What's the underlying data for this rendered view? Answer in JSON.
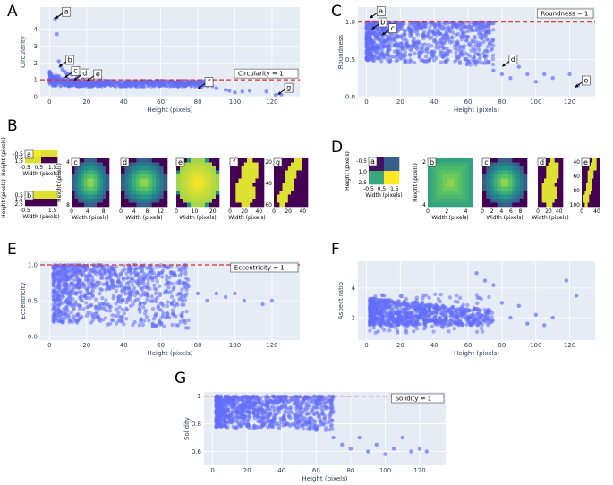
{
  "panel_labels": [
    "A",
    "B",
    "C",
    "D",
    "E",
    "F",
    "G"
  ],
  "chart_data": [
    {
      "id": "A",
      "type": "scatter",
      "xlabel": "Height (pixels)",
      "ylabel": "Circularity",
      "xlim": [
        -5,
        135
      ],
      "ylim": [
        0,
        5.3
      ],
      "xticks": [
        0,
        20,
        40,
        60,
        80,
        100,
        120
      ],
      "yticks": [
        0,
        1,
        2,
        3,
        4
      ],
      "ref_value": 1,
      "legend": "Circularity = 1",
      "cloud": {
        "kind": "decay",
        "x_range": [
          0,
          88
        ],
        "y_base": 0.7,
        "y_spread": 0.35,
        "density": 700
      },
      "extra_points": [
        [
          3,
          4.6
        ],
        [
          4,
          3.7
        ],
        [
          5,
          2.1
        ],
        [
          6,
          1.8
        ],
        [
          7,
          1.6
        ],
        [
          8,
          1.5
        ],
        [
          9,
          1.4
        ],
        [
          10,
          1.35
        ],
        [
          12,
          1.3
        ],
        [
          5,
          1.2
        ],
        [
          15,
          1.15
        ],
        [
          18,
          1.1
        ],
        [
          90,
          0.5
        ],
        [
          95,
          0.4
        ],
        [
          97,
          0.35
        ],
        [
          100,
          0.25
        ],
        [
          104,
          0.3
        ],
        [
          108,
          0.35
        ],
        [
          117,
          0.3
        ],
        [
          122,
          0.1
        ],
        [
          125,
          0.12
        ]
      ],
      "annotations": [
        {
          "label": "a",
          "x": 3,
          "y": 4.6
        },
        {
          "label": "b",
          "x": 5,
          "y": 1.75
        },
        {
          "label": "c",
          "x": 8,
          "y": 1.1
        },
        {
          "label": "d",
          "x": 13,
          "y": 0.95
        },
        {
          "label": "e",
          "x": 20,
          "y": 0.9
        },
        {
          "label": "f",
          "x": 80,
          "y": 0.45
        },
        {
          "label": "g",
          "x": 123,
          "y": 0.1
        }
      ]
    },
    {
      "id": "C",
      "type": "scatter",
      "xlabel": "Height (pixels)",
      "ylabel": "Roundness",
      "xlim": [
        -5,
        135
      ],
      "ylim": [
        0,
        1.2
      ],
      "xticks": [
        0,
        20,
        40,
        60,
        80,
        100,
        120
      ],
      "yticks": [
        0.0,
        0.5,
        1.0
      ],
      "ref_value": 1,
      "legend": "Roundness = 1",
      "cloud": {
        "kind": "band",
        "x_range": [
          0,
          75
        ],
        "y_low": 0.35,
        "y_high": 1.0,
        "density": 900
      },
      "extra_points": [
        [
          70,
          0.45
        ],
        [
          75,
          0.35
        ],
        [
          80,
          0.3
        ],
        [
          85,
          0.25
        ],
        [
          90,
          0.4
        ],
        [
          95,
          0.3
        ],
        [
          100,
          0.2
        ],
        [
          105,
          0.3
        ],
        [
          110,
          0.25
        ],
        [
          120,
          0.3
        ],
        [
          125,
          0.15
        ]
      ],
      "annotations": [
        {
          "label": "a",
          "x": 2,
          "y": 1.05
        },
        {
          "label": "b",
          "x": 3,
          "y": 0.9
        },
        {
          "label": "c",
          "x": 9,
          "y": 0.82
        },
        {
          "label": "d",
          "x": 80,
          "y": 0.4
        },
        {
          "label": "e",
          "x": 123,
          "y": 0.12
        }
      ]
    },
    {
      "id": "E",
      "type": "scatter",
      "xlabel": "Height (pixels)",
      "ylabel": "Eccentricity",
      "xlim": [
        -5,
        135
      ],
      "ylim": [
        -0.05,
        1.05
      ],
      "xticks": [
        0,
        20,
        40,
        60,
        80,
        100,
        120
      ],
      "yticks": [
        0.0,
        0.5,
        1.0
      ],
      "ref_value": 1,
      "legend": "Eccentricity = 1",
      "cloud": {
        "kind": "band",
        "x_range": [
          2,
          75
        ],
        "y_low": 0.0,
        "y_high": 1.0,
        "density": 900
      },
      "extra_points": [
        [
          70,
          0.6
        ],
        [
          75,
          0.7
        ],
        [
          80,
          0.6
        ],
        [
          85,
          0.5
        ],
        [
          90,
          0.6
        ],
        [
          95,
          0.55
        ],
        [
          100,
          0.6
        ],
        [
          105,
          0.5
        ],
        [
          115,
          0.45
        ],
        [
          120,
          0.5
        ]
      ],
      "annotations": []
    },
    {
      "id": "F",
      "type": "scatter",
      "xlabel": "Height (pixels)",
      "ylabel": "Aspect ratio",
      "xlim": [
        -5,
        135
      ],
      "ylim": [
        0.5,
        5.8
      ],
      "xticks": [
        0,
        20,
        40,
        60,
        80,
        100,
        120
      ],
      "yticks": [
        2,
        4
      ],
      "ref_value": null,
      "legend": "",
      "cloud": {
        "kind": "band",
        "x_range": [
          2,
          75
        ],
        "y_low": 1.0,
        "y_high": 3.6,
        "density": 900
      },
      "extra_points": [
        [
          65,
          5.0
        ],
        [
          70,
          4.5
        ],
        [
          75,
          4.2
        ],
        [
          80,
          3.0
        ],
        [
          85,
          2.0
        ],
        [
          90,
          2.8
        ],
        [
          95,
          1.6
        ],
        [
          100,
          2.2
        ],
        [
          105,
          1.5
        ],
        [
          110,
          2.0
        ],
        [
          118,
          4.5
        ],
        [
          124,
          3.5
        ]
      ],
      "annotations": []
    },
    {
      "id": "G",
      "type": "scatter",
      "xlabel": "Height (pixels)",
      "ylabel": "Solidity",
      "xlim": [
        -5,
        135
      ],
      "ylim": [
        0.5,
        1.03
      ],
      "xticks": [
        0,
        20,
        40,
        60,
        80,
        100,
        120
      ],
      "yticks": [
        0.6,
        0.8,
        1.0
      ],
      "ref_value": 1,
      "legend": "Solidity = 1",
      "cloud": {
        "kind": "band",
        "x_range": [
          2,
          70
        ],
        "y_low": 0.72,
        "y_high": 1.0,
        "density": 900
      },
      "extra_points": [
        [
          70,
          0.7
        ],
        [
          75,
          0.65
        ],
        [
          80,
          0.62
        ],
        [
          85,
          0.7
        ],
        [
          90,
          0.6
        ],
        [
          95,
          0.65
        ],
        [
          100,
          0.58
        ],
        [
          105,
          0.62
        ],
        [
          110,
          0.7
        ],
        [
          115,
          0.6
        ],
        [
          120,
          0.62
        ],
        [
          124,
          0.6
        ]
      ],
      "annotations": []
    }
  ],
  "image_panels": {
    "B": [
      {
        "label": "a",
        "kind": "block2",
        "xlabel": "Width (pixels)",
        "ylabel": "Height (pixels)",
        "xticks": [
          "-0.5",
          "0.5",
          "1.5"
        ],
        "yticks": [
          "-0.5",
          "0.5",
          "1.5"
        ]
      },
      {
        "label": "b",
        "kind": "block1",
        "xlabel": "Width (pixels)",
        "ylabel": "Height (pixels)",
        "xticks": [
          "-0.5",
          "1.5"
        ],
        "yticks": [
          "0.5",
          "1.5",
          "2.5"
        ]
      },
      {
        "label": "c",
        "kind": "blob",
        "xlabel": "Width (pixels)",
        "ylabel": "Height (pixels)",
        "xticks": [
          "0",
          "4",
          "8"
        ],
        "yticks": [
          "4",
          "8"
        ]
      },
      {
        "label": "d",
        "kind": "blob",
        "xlabel": "Width (pixels)",
        "ylabel": "",
        "xticks": [
          "0",
          "4",
          "8",
          "12"
        ],
        "yticks": []
      },
      {
        "label": "e",
        "kind": "bigdisk",
        "xlabel": "Width (pixels)",
        "ylabel": "",
        "xticks": [
          "0",
          "10",
          "20"
        ],
        "yticks": []
      },
      {
        "label": "f",
        "kind": "snowman",
        "xlabel": "Width (pixels)",
        "ylabel": "",
        "xticks": [
          "0",
          "20",
          "40"
        ],
        "yticks": []
      },
      {
        "label": "g",
        "kind": "chain",
        "xlabel": "",
        "ylabel": "",
        "xticks": [
          "0",
          "20",
          "40"
        ],
        "yticks": [
          "20",
          "40",
          "60"
        ]
      }
    ],
    "D": [
      {
        "label": "a",
        "kind": "quad",
        "xlabel": "Width (pixels)",
        "ylabel": "Height (pixels)",
        "xticks": [
          "-0.5",
          "0.5",
          "1.5"
        ],
        "yticks": [
          "-0.5",
          "1.0",
          "2.5"
        ]
      },
      {
        "label": "b",
        "kind": "flat",
        "xlabel": "Width (pixels)",
        "ylabel": "Height (pixels)",
        "xticks": [
          "0",
          "2",
          "4"
        ],
        "yticks": [
          "2",
          "4"
        ]
      },
      {
        "label": "c",
        "kind": "blob",
        "xlabel": "Width (pixels)",
        "ylabel": "",
        "xticks": [
          "0",
          "2",
          "4",
          "6",
          "8"
        ],
        "yticks": []
      },
      {
        "label": "d",
        "kind": "snowman",
        "xlabel": "Width (pixels)",
        "ylabel": "",
        "xticks": [
          "0",
          "20",
          "40"
        ],
        "yticks": []
      },
      {
        "label": "e",
        "kind": "chain",
        "xlabel": "",
        "ylabel": "",
        "xticks": [
          "0",
          "40"
        ],
        "yticks": [
          "40",
          "60",
          "80",
          "100"
        ]
      }
    ]
  },
  "colors": {
    "marker": "#636efa",
    "ref": "#e3281f",
    "plot_bg": "#e5ecf6",
    "viridis_dark": "#440154",
    "viridis_mid": "#21918c",
    "viridis_light": "#fde725"
  }
}
